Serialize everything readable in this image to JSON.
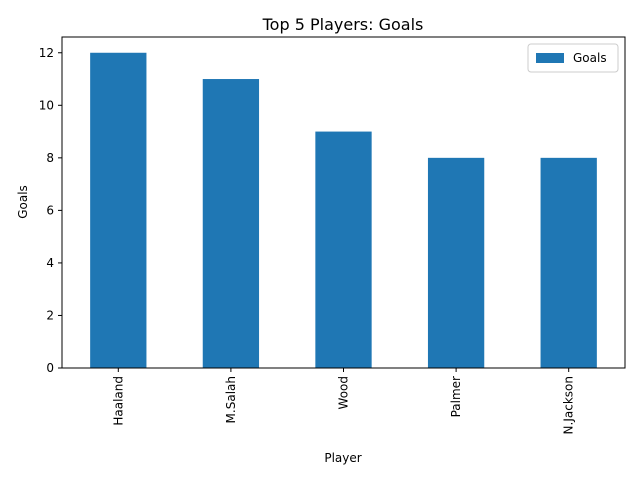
{
  "chart_data": {
    "type": "bar",
    "title": "Top 5 Players: Goals",
    "xlabel": "Player",
    "ylabel": "Goals",
    "categories": [
      "Haaland",
      "M.Salah",
      "Wood",
      "Palmer",
      "N.Jackson"
    ],
    "series": [
      {
        "name": "Goals",
        "values": [
          12,
          11,
          9,
          8,
          8
        ]
      }
    ],
    "ylim": [
      0,
      12.6
    ],
    "yticks": [
      "0",
      "2",
      "4",
      "6",
      "8",
      "10",
      "12"
    ],
    "legend_position": "top-right",
    "grid": false,
    "bar_color": "#1f77b4",
    "x_tick_rotation": "vertical"
  }
}
